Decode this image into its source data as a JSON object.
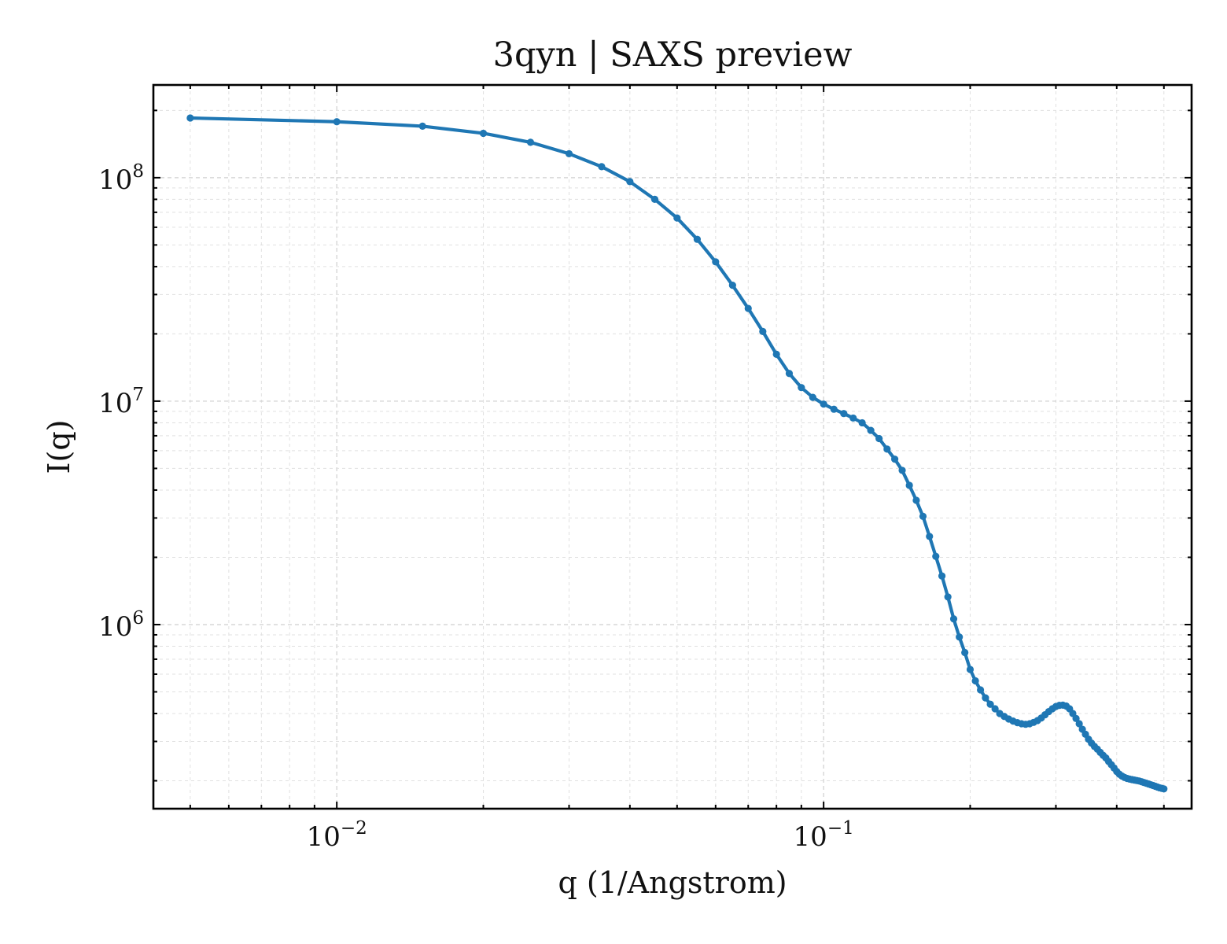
{
  "chart_data": {
    "type": "line",
    "title": "3qyn | SAXS preview",
    "xlabel": "q (1/Angstrom)",
    "ylabel": "I(q)",
    "xscale": "log",
    "yscale": "log",
    "xlim": [
      0.0042,
      0.57
    ],
    "ylim": [
      150000,
      260000000
    ],
    "x_ticks": [
      {
        "base": "10",
        "exp": "−2",
        "value": 0.01
      },
      {
        "base": "10",
        "exp": "−1",
        "value": 0.1
      }
    ],
    "y_ticks": [
      {
        "base": "10",
        "exp": "6",
        "value": 1000000
      },
      {
        "base": "10",
        "exp": "7",
        "value": 10000000
      },
      {
        "base": "10",
        "exp": "8",
        "value": 100000000
      }
    ],
    "grid": true,
    "legend": "none",
    "line_color": "#1f77b4",
    "series": [
      {
        "x": [
          0.005,
          0.01,
          0.015,
          0.02,
          0.025,
          0.03,
          0.035,
          0.04,
          0.045,
          0.05,
          0.055,
          0.06,
          0.065,
          0.07,
          0.075,
          0.08,
          0.085,
          0.09,
          0.095,
          0.1,
          0.105,
          0.11,
          0.115,
          0.12,
          0.125,
          0.13,
          0.135,
          0.14,
          0.145,
          0.15,
          0.155,
          0.16,
          0.165,
          0.17,
          0.175,
          0.18,
          0.185,
          0.19,
          0.195,
          0.2,
          0.205,
          0.21,
          0.215,
          0.22,
          0.225,
          0.23,
          0.235,
          0.24,
          0.245,
          0.25,
          0.255,
          0.26,
          0.265,
          0.27,
          0.275,
          0.28,
          0.285,
          0.29,
          0.295,
          0.3,
          0.305,
          0.31,
          0.315,
          0.32,
          0.325,
          0.33,
          0.335,
          0.34,
          0.345,
          0.35,
          0.355,
          0.36,
          0.365,
          0.37,
          0.375,
          0.38,
          0.385,
          0.39,
          0.395,
          0.4,
          0.405,
          0.41,
          0.415,
          0.42,
          0.425,
          0.43,
          0.435,
          0.44,
          0.445,
          0.45,
          0.455,
          0.46,
          0.465,
          0.47,
          0.475,
          0.48,
          0.485,
          0.49,
          0.495,
          0.5
        ],
        "values": [
          185000000,
          178000000,
          170000000,
          158000000,
          144000000,
          128000000,
          112000000,
          96000000,
          80000000,
          66000000,
          53000000,
          42000000,
          33000000,
          26000000,
          20500000,
          16200000,
          13300000,
          11500000,
          10400000,
          9700000,
          9200000,
          8800000,
          8400000,
          8000000,
          7400000,
          6800000,
          6100000,
          5500000,
          4900000,
          4200000,
          3600000,
          3050000,
          2480000,
          2020000,
          1650000,
          1330000,
          1060000,
          880000,
          750000,
          630000,
          560000,
          510000,
          470000,
          440000,
          420000,
          400000,
          388000,
          378000,
          370000,
          364000,
          360000,
          358000,
          360000,
          365000,
          372000,
          382000,
          395000,
          408000,
          420000,
          430000,
          435000,
          436000,
          432000,
          420000,
          400000,
          380000,
          360000,
          340000,
          323000,
          307000,
          295000,
          285000,
          277000,
          268000,
          260000,
          253000,
          244000,
          236000,
          228000,
          220000,
          214000,
          210000,
          207000,
          205000,
          203500,
          202500,
          201500,
          200500,
          199500,
          198000,
          196500,
          195000,
          193500,
          192000,
          190500,
          189000,
          187500,
          186000,
          185000,
          184000
        ]
      }
    ]
  }
}
